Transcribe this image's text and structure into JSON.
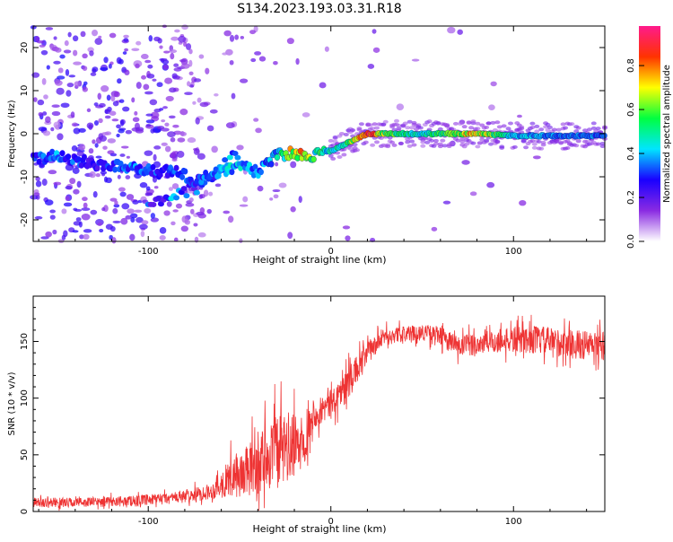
{
  "title": "S134.2023.193.03.31.R18",
  "chart_data": [
    {
      "type": "heatmap",
      "xlabel": "Height of straight line (km)",
      "ylabel": "Frequency (Hz)",
      "xlim": [
        -163,
        150
      ],
      "ylim": [
        -25,
        25
      ],
      "x_ticks": [
        -100,
        0,
        100
      ],
      "y_ticks": [
        -20,
        -10,
        0,
        10,
        20
      ],
      "colorbar": {
        "label": "Normalized spectral amplitude",
        "range": [
          0,
          0.98
        ],
        "ticks": [
          0.0,
          0.2,
          0.4,
          0.6,
          0.8
        ],
        "colors": [
          "#ffffff",
          "#8a2be2",
          "#1a00ff",
          "#00e5ff",
          "#00ff40",
          "#ffff00",
          "#ff3300",
          "#ff1a8c"
        ]
      },
      "ridge": [
        {
          "x": -163,
          "f": -6,
          "a": 0.3
        },
        {
          "x": -150,
          "f": -5,
          "a": 0.35
        },
        {
          "x": -130,
          "f": -7,
          "a": 0.25
        },
        {
          "x": -115,
          "f": -7.5,
          "a": 0.3
        },
        {
          "x": -105,
          "f": -8,
          "a": 0.35
        },
        {
          "x": -95,
          "f": -9,
          "a": 0.3
        },
        {
          "x": -85,
          "f": -8.5,
          "a": 0.3
        },
        {
          "x": -75,
          "f": -11,
          "a": 0.3
        },
        {
          "x": -60,
          "f": -9,
          "a": 0.4
        },
        {
          "x": -50,
          "f": -7,
          "a": 0.4
        },
        {
          "x": -40,
          "f": -9,
          "a": 0.35
        },
        {
          "x": -30,
          "f": -5,
          "a": 0.4
        },
        {
          "x": -20,
          "f": -4.5,
          "a": 0.75
        },
        {
          "x": -10,
          "f": -5,
          "a": 0.55
        },
        {
          "x": 0,
          "f": -4,
          "a": 0.45
        },
        {
          "x": 10,
          "f": -2,
          "a": 0.55
        },
        {
          "x": 20,
          "f": 0,
          "a": 0.9
        },
        {
          "x": 30,
          "f": 0,
          "a": 0.6
        },
        {
          "x": 50,
          "f": 0,
          "a": 0.45
        },
        {
          "x": 80,
          "f": 0,
          "a": 0.75
        },
        {
          "x": 100,
          "f": -0.5,
          "a": 0.4
        },
        {
          "x": 130,
          "f": -0.5,
          "a": 0.35
        },
        {
          "x": 150,
          "f": -0.5,
          "a": 0.35
        }
      ],
      "secondary_ridge": [
        {
          "x": -100,
          "f": -16,
          "a": 0.3
        },
        {
          "x": -85,
          "f": -14,
          "a": 0.35
        },
        {
          "x": -70,
          "f": -12,
          "a": 0.3
        },
        {
          "x": -60,
          "f": -8,
          "a": 0.35
        },
        {
          "x": -50,
          "f": -4,
          "a": 0.3
        }
      ]
    },
    {
      "type": "line",
      "xlabel": "Height of straight line (km)",
      "ylabel": "SNR (10 * v/v)",
      "xlim": [
        -163,
        150
      ],
      "ylim": [
        0,
        190
      ],
      "x_ticks": [
        -100,
        0,
        100
      ],
      "y_ticks": [
        0,
        50,
        100,
        150
      ],
      "color": "#ee3333",
      "series_envelope": [
        {
          "x": -163,
          "mean": 8,
          "spread": 6
        },
        {
          "x": -140,
          "mean": 8,
          "spread": 6
        },
        {
          "x": -120,
          "mean": 9,
          "spread": 6
        },
        {
          "x": -100,
          "mean": 10,
          "spread": 7
        },
        {
          "x": -80,
          "mean": 13,
          "spread": 8
        },
        {
          "x": -65,
          "mean": 18,
          "spread": 10
        },
        {
          "x": -55,
          "mean": 30,
          "spread": 25
        },
        {
          "x": -45,
          "mean": 35,
          "spread": 35
        },
        {
          "x": -35,
          "mean": 50,
          "spread": 45
        },
        {
          "x": -25,
          "mean": 55,
          "spread": 50
        },
        {
          "x": -15,
          "mean": 60,
          "spread": 30
        },
        {
          "x": -10,
          "mean": 85,
          "spread": 18
        },
        {
          "x": 0,
          "mean": 95,
          "spread": 18
        },
        {
          "x": 10,
          "mean": 115,
          "spread": 20
        },
        {
          "x": 20,
          "mean": 140,
          "spread": 15
        },
        {
          "x": 30,
          "mean": 155,
          "spread": 10
        },
        {
          "x": 50,
          "mean": 158,
          "spread": 10
        },
        {
          "x": 60,
          "mean": 155,
          "spread": 12
        },
        {
          "x": 70,
          "mean": 145,
          "spread": 15
        },
        {
          "x": 90,
          "mean": 150,
          "spread": 15
        },
        {
          "x": 110,
          "mean": 152,
          "spread": 18
        },
        {
          "x": 130,
          "mean": 148,
          "spread": 18
        },
        {
          "x": 150,
          "mean": 145,
          "spread": 20
        }
      ]
    }
  ]
}
